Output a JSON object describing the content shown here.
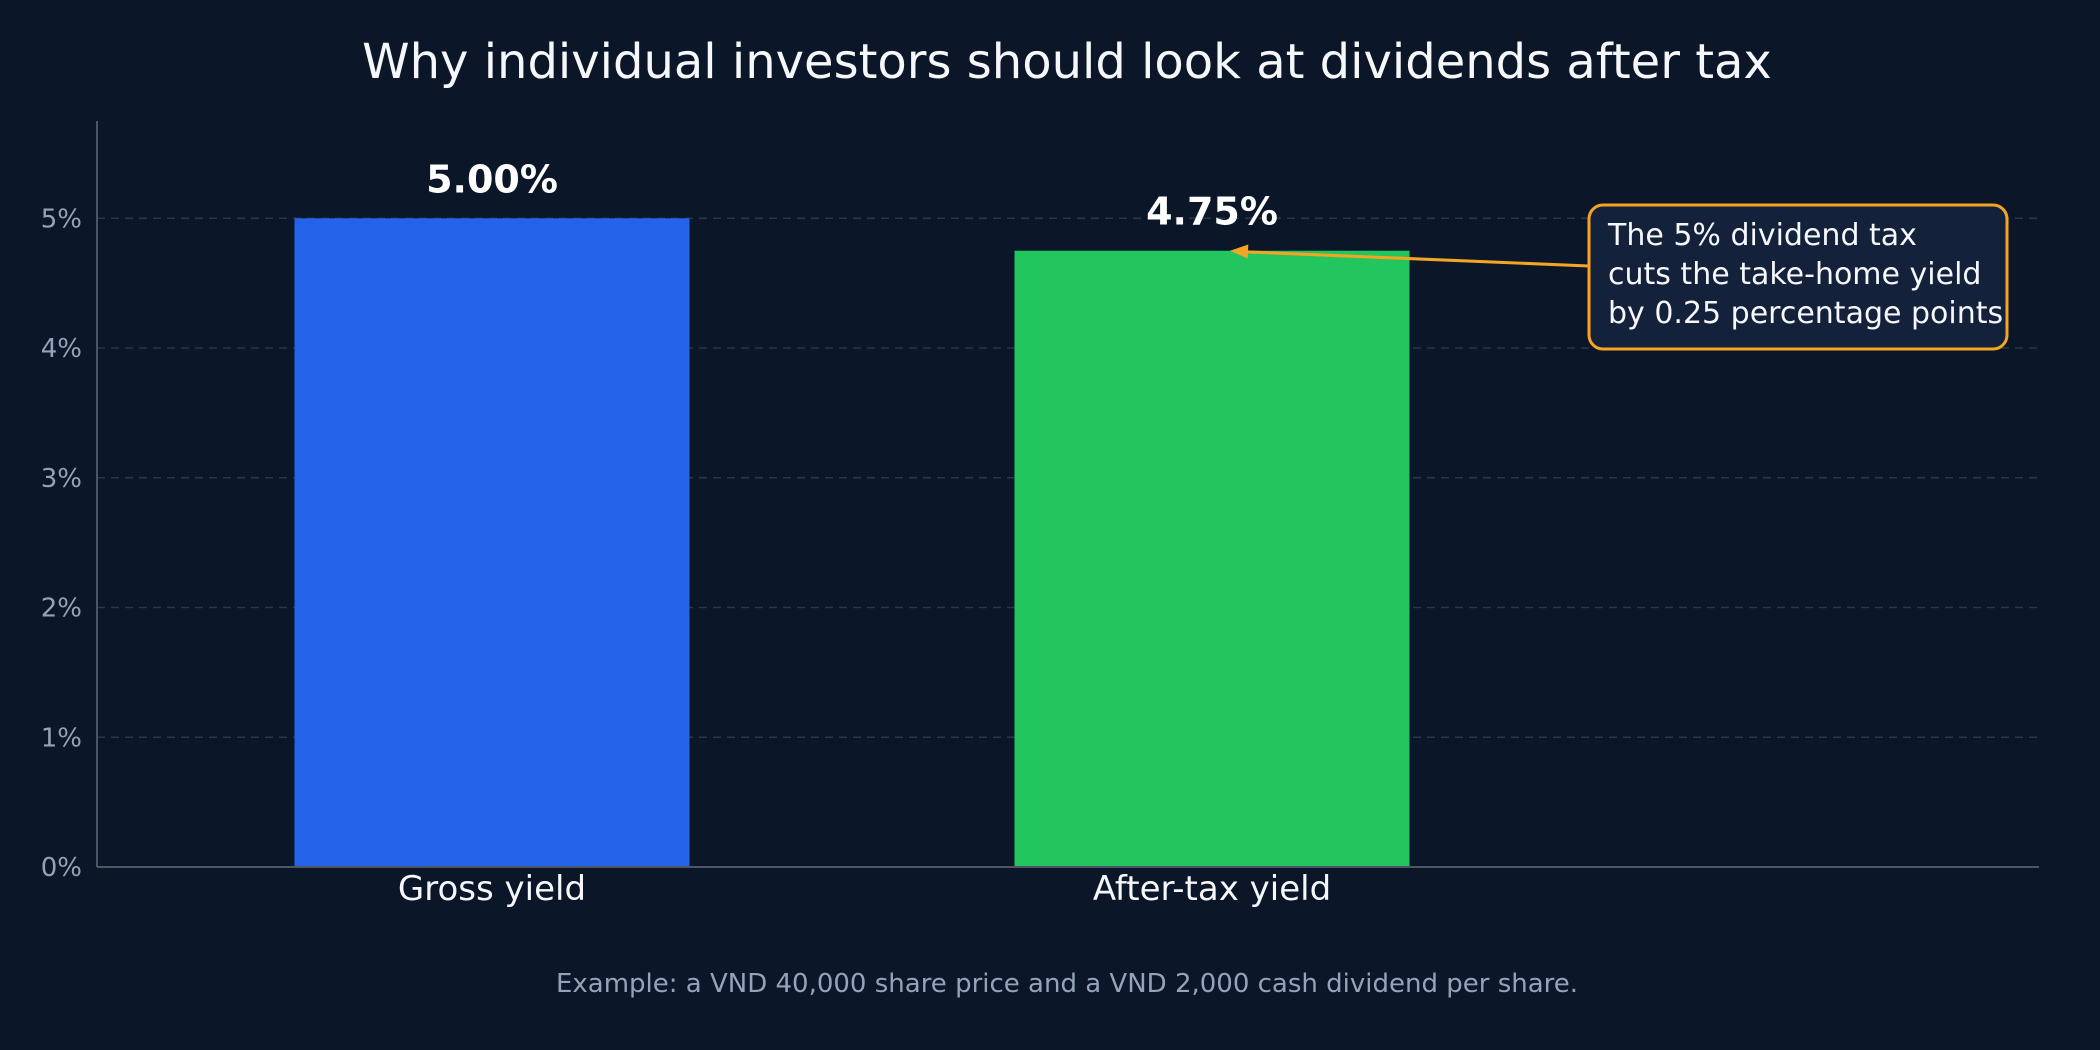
{
  "chart_data": {
    "type": "bar",
    "title": "Why individual investors should look at dividends after tax",
    "xlabel": "",
    "ylabel": "",
    "categories": [
      "Gross yield",
      "After-tax yield"
    ],
    "values": [
      5.0,
      4.75
    ],
    "value_labels": [
      "5.00%",
      "4.75%"
    ],
    "ylim": [
      0,
      5.75
    ],
    "yticks": [
      0,
      1,
      2,
      3,
      4,
      5
    ],
    "ytick_labels": [
      "0%",
      "1%",
      "2%",
      "3%",
      "4%",
      "5%"
    ],
    "grid": true,
    "legend": "none",
    "annotation": {
      "lines": [
        "The 5% dividend tax",
        "cuts the take-home yield",
        "by 0.25 percentage points"
      ],
      "target_category": "After-tax yield"
    },
    "footnote": "Example: a VND 40,000 share price and a VND 2,000 cash dividend per share."
  },
  "colors": {
    "background": "#0b1728",
    "gross_bar": "#2563eb",
    "after_tax_bar": "#22c55e",
    "annotation": "#f5a524",
    "grid": "#2a3748",
    "axis": "#4b5563"
  }
}
